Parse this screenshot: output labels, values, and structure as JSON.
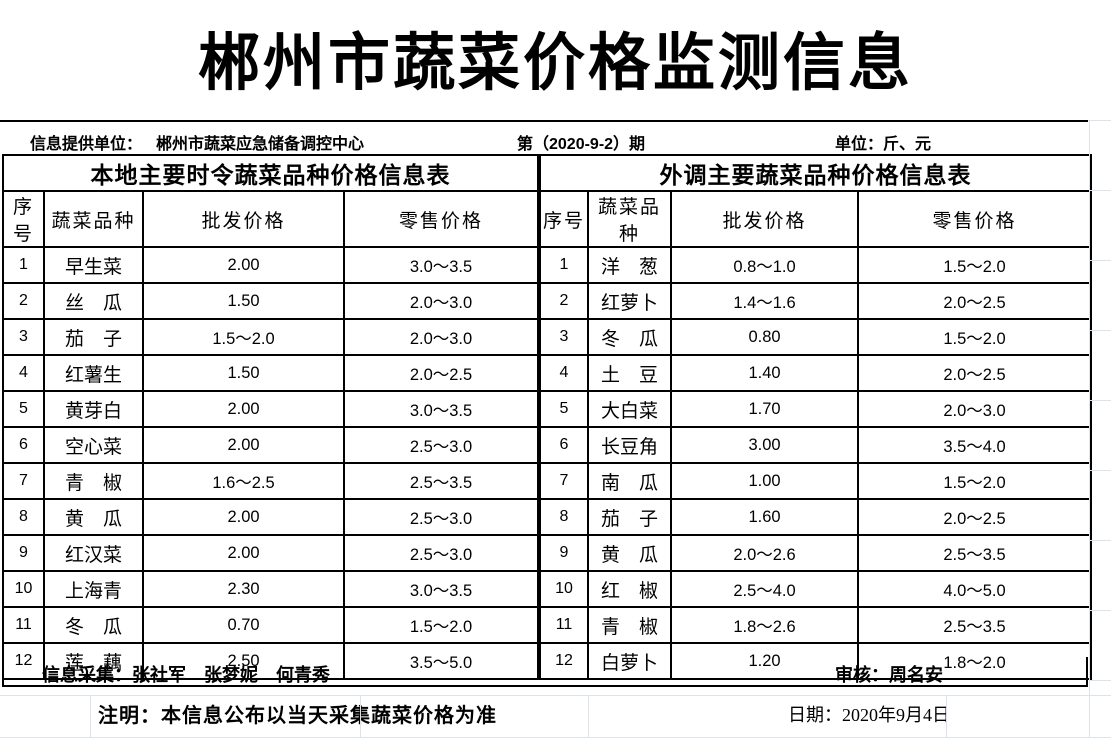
{
  "title": "郴州市蔬菜价格监测信息",
  "info_bar": {
    "provider_label": "信息提供单位：",
    "provider": "郴州市蔬菜应急储备调控中心",
    "issue": "第（2020-9-2）期",
    "unit": "单位：斤、元"
  },
  "tables": [
    {
      "title": "本地主要时令蔬菜品种价格信息表",
      "columns": [
        "序号",
        "蔬菜品种",
        "批发价格",
        "零售价格"
      ],
      "rows": [
        {
          "no": "1",
          "name": "早生菜",
          "wholesale": "2.00",
          "retail": "3.0～3.5"
        },
        {
          "no": "2",
          "name": "丝　瓜",
          "wholesale": "1.50",
          "retail": "2.0～3.0"
        },
        {
          "no": "3",
          "name": "茄　子",
          "wholesale": "1.5～2.0",
          "retail": "2.0～3.0"
        },
        {
          "no": "4",
          "name": "红薯生",
          "wholesale": "1.50",
          "retail": "2.0～2.5"
        },
        {
          "no": "5",
          "name": "黄芽白",
          "wholesale": "2.00",
          "retail": "3.0～3.5"
        },
        {
          "no": "6",
          "name": "空心菜",
          "wholesale": "2.00",
          "retail": "2.5～3.0"
        },
        {
          "no": "7",
          "name": "青　椒",
          "wholesale": "1.6～2.5",
          "retail": "2.5～3.5"
        },
        {
          "no": "8",
          "name": "黄　瓜",
          "wholesale": "2.00",
          "retail": "2.5～3.0"
        },
        {
          "no": "9",
          "name": "红汉菜",
          "wholesale": "2.00",
          "retail": "2.5～3.0"
        },
        {
          "no": "10",
          "name": "上海青",
          "wholesale": "2.30",
          "retail": "3.0～3.5"
        },
        {
          "no": "11",
          "name": "冬　瓜",
          "wholesale": "0.70",
          "retail": "1.5～2.0"
        },
        {
          "no": "12",
          "name": "莲　藕",
          "wholesale": "2.50",
          "retail": "3.5～5.0"
        }
      ]
    },
    {
      "title": "外调主要蔬菜品种价格信息表",
      "columns": [
        "序号",
        "蔬菜品种",
        "批发价格",
        "零售价格"
      ],
      "rows": [
        {
          "no": "1",
          "name": "洋　葱",
          "wholesale": "0.8～1.0",
          "retail": "1.5～2.0"
        },
        {
          "no": "2",
          "name": "红萝卜",
          "wholesale": "1.4～1.6",
          "retail": "2.0～2.5"
        },
        {
          "no": "3",
          "name": "冬　瓜",
          "wholesale": "0.80",
          "retail": "1.5～2.0"
        },
        {
          "no": "4",
          "name": "土　豆",
          "wholesale": "1.40",
          "retail": "2.0～2.5"
        },
        {
          "no": "5",
          "name": "大白菜",
          "wholesale": "1.70",
          "retail": "2.0～3.0"
        },
        {
          "no": "6",
          "name": "长豆角",
          "wholesale": "3.00",
          "retail": "3.5～4.0"
        },
        {
          "no": "7",
          "name": "南　瓜",
          "wholesale": "1.00",
          "retail": "1.5～2.0"
        },
        {
          "no": "8",
          "name": "茄　子",
          "wholesale": "1.60",
          "retail": "2.0～2.5"
        },
        {
          "no": "9",
          "name": "黄　瓜",
          "wholesale": "2.0～2.6",
          "retail": "2.5～3.5"
        },
        {
          "no": "10",
          "name": "红　椒",
          "wholesale": "2.5～4.0",
          "retail": "4.0～5.0"
        },
        {
          "no": "11",
          "name": "青　椒",
          "wholesale": "1.8～2.6",
          "retail": "2.5～3.5"
        },
        {
          "no": "12",
          "name": "白萝卜",
          "wholesale": "1.20",
          "retail": "1.8～2.0"
        }
      ]
    }
  ],
  "footer": {
    "collectors": "信息采集：张社军　张梦妮　何青秀",
    "auditor": "审核：周名安",
    "note": "注明：本信息公布以当天采集蔬菜价格为准",
    "date": "日期：2020年9月4日"
  },
  "colors": {
    "text": "#000000",
    "table_border": "#000000",
    "faint_grid": "#dde3ea",
    "background": "#ffffff"
  }
}
